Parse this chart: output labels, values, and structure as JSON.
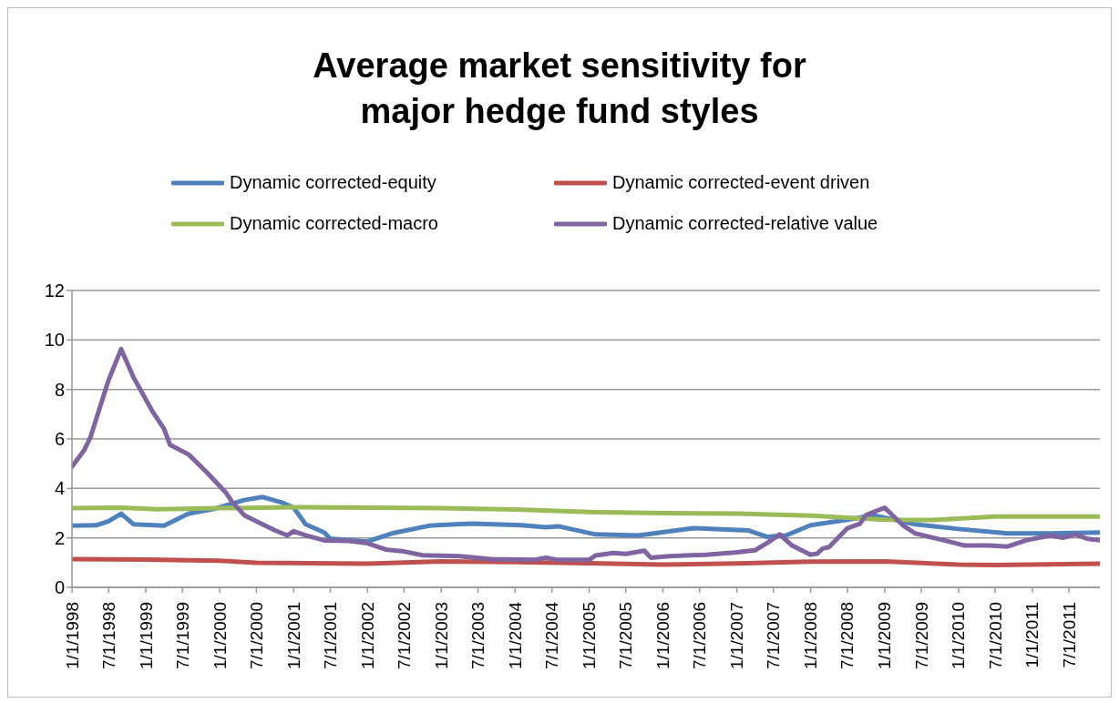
{
  "chart_data": {
    "type": "line",
    "title": "Average market sensitivity for major hedge fund styles",
    "series": [
      {
        "name": "Dynamic corrected-equity",
        "color": "#4f81bd",
        "x": [
          "1998-01",
          "1998-05",
          "1998-07",
          "1998-09",
          "1998-11",
          "1999-04",
          "1999-08",
          "1999-12",
          "2000-05",
          "2000-08",
          "2000-11",
          "2001-01",
          "2001-03",
          "2001-06",
          "2001-07",
          "2002-01",
          "2002-05",
          "2002-11",
          "2003-06",
          "2004-02",
          "2004-06",
          "2004-08",
          "2005-02",
          "2005-09",
          "2006-06",
          "2007-03",
          "2007-06",
          "2007-09",
          "2008-01",
          "2008-07",
          "2008-11",
          "2009-06",
          "2010-01",
          "2010-09",
          "2011-04",
          "2011-12"
        ],
        "values": [
          2.49,
          2.51,
          2.67,
          2.98,
          2.55,
          2.49,
          2.98,
          3.16,
          3.53,
          3.65,
          3.44,
          3.22,
          2.55,
          2.22,
          1.97,
          1.85,
          2.18,
          2.49,
          2.58,
          2.51,
          2.43,
          2.47,
          2.14,
          2.1,
          2.39,
          2.3,
          2.04,
          2.1,
          2.51,
          2.73,
          2.92,
          2.55,
          2.36,
          2.18,
          2.18,
          2.22
        ]
      },
      {
        "name": "Dynamic corrected-event driven",
        "color": "#c0504d",
        "x": [
          "1998-01",
          "1999-01",
          "2000-01",
          "2000-07",
          "2002-01",
          "2003-01",
          "2004-01",
          "2005-01",
          "2006-01",
          "2007-01",
          "2008-01",
          "2009-01",
          "2010-01",
          "2010-07",
          "2011-12"
        ],
        "values": [
          1.14,
          1.12,
          1.08,
          0.99,
          0.96,
          1.05,
          1.02,
          0.98,
          0.92,
          0.97,
          1.04,
          1.05,
          0.92,
          0.9,
          0.96
        ]
      },
      {
        "name": "Dynamic corrected-macro",
        "color": "#9bbb59",
        "x": [
          "1998-01",
          "1998-09",
          "1999-03",
          "2000-01",
          "2001-01",
          "2002-01",
          "2003-01",
          "2004-01",
          "2005-01",
          "2006-01",
          "2007-01",
          "2008-01",
          "2009-01",
          "2009-09",
          "2010-07",
          "2011-12"
        ],
        "values": [
          3.2,
          3.22,
          3.16,
          3.2,
          3.24,
          3.22,
          3.2,
          3.15,
          3.05,
          3.0,
          2.98,
          2.9,
          2.73,
          2.72,
          2.86,
          2.86
        ]
      },
      {
        "name": "Dynamic corrected-relative value",
        "color": "#8064a2",
        "x": [
          "1998-01",
          "1998-03",
          "1998-04",
          "1998-07",
          "1998-09",
          "1998-11",
          "1999-02",
          "1999-04",
          "1999-05",
          "1999-08",
          "1999-11",
          "2000-02",
          "2000-03",
          "2000-05",
          "2000-07",
          "2000-10",
          "2000-12",
          "2001-01",
          "2001-03",
          "2001-06",
          "2001-10",
          "2002-01",
          "2002-04",
          "2002-07",
          "2002-10",
          "2003-04",
          "2003-09",
          "2004-04",
          "2004-06",
          "2004-08",
          "2005-01",
          "2005-02",
          "2005-05",
          "2005-07",
          "2005-10",
          "2005-11",
          "2006-02",
          "2006-08",
          "2007-01",
          "2007-04",
          "2007-06",
          "2007-08",
          "2007-10",
          "2008-01",
          "2008-02",
          "2008-03",
          "2008-04",
          "2008-07",
          "2008-09",
          "2008-10",
          "2009-01",
          "2009-04",
          "2009-06",
          "2009-11",
          "2010-02",
          "2010-06",
          "2010-09",
          "2010-12",
          "2011-04",
          "2011-06",
          "2011-08",
          "2011-10",
          "2011-12"
        ],
        "values": [
          4.88,
          5.53,
          6.04,
          8.38,
          9.63,
          8.49,
          7.14,
          6.41,
          5.76,
          5.37,
          4.63,
          3.83,
          3.47,
          2.92,
          2.67,
          2.3,
          2.1,
          2.27,
          2.1,
          1.9,
          1.88,
          1.78,
          1.53,
          1.45,
          1.3,
          1.26,
          1.14,
          1.11,
          1.2,
          1.11,
          1.11,
          1.29,
          1.39,
          1.35,
          1.48,
          1.2,
          1.26,
          1.32,
          1.42,
          1.5,
          1.8,
          2.14,
          1.69,
          1.32,
          1.36,
          1.57,
          1.63,
          2.39,
          2.57,
          2.92,
          3.22,
          2.51,
          2.18,
          1.88,
          1.69,
          1.69,
          1.65,
          1.9,
          2.1,
          2.0,
          2.14,
          1.96,
          1.9
        ]
      }
    ],
    "xlim": [
      "1998-01",
      "2011-12"
    ],
    "xticks": [
      {
        "value": "1998-01-01",
        "label": "1/1/1998"
      },
      {
        "value": "1998-07-01",
        "label": "7/1/1998"
      },
      {
        "value": "1999-01-01",
        "label": "1/1/1999"
      },
      {
        "value": "1999-07-01",
        "label": "7/1/1999"
      },
      {
        "value": "2000-01-01",
        "label": "1/1/2000"
      },
      {
        "value": "2000-07-01",
        "label": "7/1/2000"
      },
      {
        "value": "2001-01-01",
        "label": "1/1/2001"
      },
      {
        "value": "2001-07-01",
        "label": "7/1/2001"
      },
      {
        "value": "2002-01-01",
        "label": "1/1/2002"
      },
      {
        "value": "2002-07-01",
        "label": "7/1/2002"
      },
      {
        "value": "2003-01-01",
        "label": "1/1/2003"
      },
      {
        "value": "2003-07-01",
        "label": "7/1/2003"
      },
      {
        "value": "2004-01-01",
        "label": "1/1/2004"
      },
      {
        "value": "2004-07-01",
        "label": "7/1/2004"
      },
      {
        "value": "2005-01-01",
        "label": "1/1/2005"
      },
      {
        "value": "2005-07-01",
        "label": "7/1/2005"
      },
      {
        "value": "2006-01-01",
        "label": "1/1/2006"
      },
      {
        "value": "2006-07-01",
        "label": "7/1/2006"
      },
      {
        "value": "2007-01-01",
        "label": "1/1/2007"
      },
      {
        "value": "2007-07-01",
        "label": "7/1/2007"
      },
      {
        "value": "2008-01-01",
        "label": "1/1/2008"
      },
      {
        "value": "2008-07-01",
        "label": "7/1/2008"
      },
      {
        "value": "2009-01-01",
        "label": "1/1/2009"
      },
      {
        "value": "2009-07-01",
        "label": "7/1/2009"
      },
      {
        "value": "2010-01-01",
        "label": "1/1/2010"
      },
      {
        "value": "2010-07-01",
        "label": "7/1/2010"
      },
      {
        "value": "2011-01-01",
        "label": "1/1/2011"
      },
      {
        "value": "2011-07-01",
        "label": "7/1/2011"
      }
    ],
    "ylim": [
      0,
      12
    ],
    "yticks": [
      0,
      2,
      4,
      6,
      8,
      10,
      12
    ],
    "grid": "y",
    "legend": "top",
    "marker": "none",
    "line_style": "solid"
  }
}
